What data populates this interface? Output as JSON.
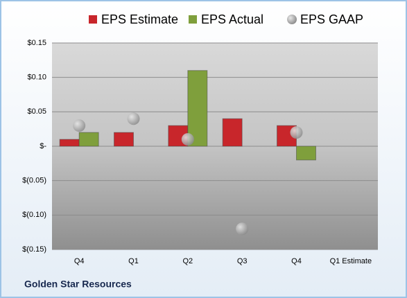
{
  "chart_data": {
    "type": "bar",
    "categories": [
      "Q4",
      "Q1",
      "Q2",
      "Q3",
      "Q4",
      "Q1 Estimate"
    ],
    "series": [
      {
        "name": "EPS Estimate",
        "type": "bar",
        "color": "#c8262b",
        "values": [
          0.01,
          0.02,
          0.03,
          0.04,
          0.03,
          null
        ]
      },
      {
        "name": "EPS Actual",
        "type": "bar",
        "color": "#7f9f3c",
        "values": [
          0.02,
          null,
          0.11,
          null,
          -0.02,
          null
        ]
      },
      {
        "name": "EPS GAAP",
        "type": "scatter",
        "color": "#a6a6a6",
        "values": [
          0.03,
          0.04,
          0.01,
          -0.12,
          0.02,
          null
        ]
      }
    ],
    "ylim": [
      -0.15,
      0.15
    ],
    "yticks": [
      {
        "value": 0.15,
        "label": "$0.15"
      },
      {
        "value": 0.1,
        "label": "$0.10"
      },
      {
        "value": 0.05,
        "label": "$0.05"
      },
      {
        "value": 0,
        "label": "$-"
      },
      {
        "value": -0.05,
        "label": "$(0.05)"
      },
      {
        "value": -0.1,
        "label": "$(0.10)"
      },
      {
        "value": -0.15,
        "label": "$(0.15)"
      }
    ],
    "grid": true,
    "legend": "top",
    "footer": "Golden Star Resources"
  }
}
